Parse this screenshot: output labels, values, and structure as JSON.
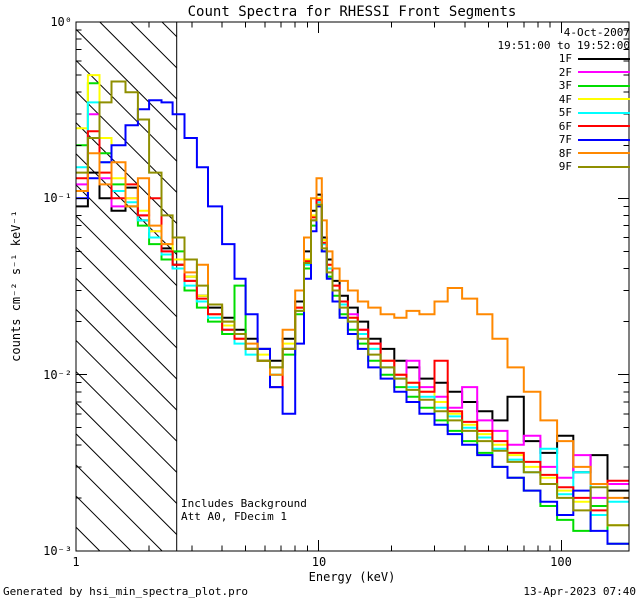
{
  "chart_data": {
    "type": "line",
    "mode": "histogram-steps",
    "title": "Count Spectra for RHESSI Front Segments",
    "xlabel": "Energy (keV)",
    "ylabel": "counts cm⁻² s⁻¹ keV⁻¹",
    "x_scale": "log",
    "y_scale": "log",
    "xlim": [
      1,
      190
    ],
    "ylim": [
      0.001,
      1
    ],
    "x_tick_labels": [
      "1",
      "10",
      "100"
    ],
    "y_tick_labels": [
      "10⁰",
      "10⁻¹",
      "10⁻²",
      "10⁻³"
    ],
    "legend_position": "top-right-inside",
    "hatch_xmax_keV": 2.6,
    "energy_bin_edges_keV": [
      1.0,
      1.12,
      1.25,
      1.4,
      1.6,
      1.8,
      2.0,
      2.25,
      2.5,
      2.8,
      3.15,
      3.5,
      4.0,
      4.5,
      5.0,
      5.6,
      6.3,
      7.1,
      8.0,
      8.7,
      9.3,
      9.8,
      10.3,
      10.8,
      11.4,
      12.2,
      13.2,
      14.5,
      16.0,
      18.0,
      20.5,
      23.0,
      26.0,
      30.0,
      34.0,
      39.0,
      45.0,
      52.0,
      60.0,
      70.0,
      82.0,
      96.0,
      112.0,
      132.0,
      155.0,
      190.0
    ],
    "series": [
      {
        "name": "1F",
        "color": "#000000",
        "values": [
          0.09,
          0.14,
          0.1,
          0.085,
          0.115,
          0.075,
          0.06,
          0.052,
          0.042,
          0.036,
          0.028,
          0.024,
          0.021,
          0.018,
          0.016,
          0.014,
          0.012,
          0.016,
          0.026,
          0.05,
          0.085,
          0.105,
          0.06,
          0.045,
          0.034,
          0.028,
          0.024,
          0.02,
          0.016,
          0.014,
          0.012,
          0.011,
          0.0095,
          0.009,
          0.008,
          0.007,
          0.0062,
          0.0055,
          0.0075,
          0.0042,
          0.0036,
          0.0045,
          0.0028,
          0.0035,
          0.0022
        ]
      },
      {
        "name": "2F",
        "color": "#ff00ff",
        "values": [
          0.12,
          0.3,
          0.13,
          0.09,
          0.1,
          0.08,
          0.065,
          0.05,
          0.04,
          0.034,
          0.026,
          0.022,
          0.018,
          0.016,
          0.014,
          0.012,
          0.011,
          0.014,
          0.024,
          0.045,
          0.075,
          0.095,
          0.055,
          0.04,
          0.032,
          0.026,
          0.022,
          0.018,
          0.015,
          0.012,
          0.01,
          0.012,
          0.0085,
          0.0075,
          0.0065,
          0.0085,
          0.0055,
          0.0048,
          0.004,
          0.0045,
          0.003,
          0.0026,
          0.0035,
          0.002,
          0.0024
        ]
      },
      {
        "name": "3F",
        "color": "#00dd00",
        "values": [
          0.2,
          0.45,
          0.18,
          0.12,
          0.09,
          0.07,
          0.055,
          0.045,
          0.05,
          0.03,
          0.024,
          0.02,
          0.017,
          0.032,
          0.014,
          0.012,
          0.01,
          0.013,
          0.022,
          0.04,
          0.07,
          0.09,
          0.05,
          0.036,
          0.028,
          0.022,
          0.018,
          0.015,
          0.012,
          0.01,
          0.0085,
          0.0075,
          0.0065,
          0.0055,
          0.0048,
          0.0042,
          0.0036,
          0.003,
          0.0026,
          0.0022,
          0.0018,
          0.0015,
          0.0013,
          0.0018,
          0.0011
        ]
      },
      {
        "name": "4F",
        "color": "#ffff00",
        "values": [
          0.25,
          0.5,
          0.22,
          0.13,
          0.1,
          0.085,
          0.065,
          0.055,
          0.045,
          0.036,
          0.028,
          0.022,
          0.019,
          0.016,
          0.014,
          0.013,
          0.011,
          0.015,
          0.024,
          0.045,
          0.08,
          0.1,
          0.058,
          0.042,
          0.032,
          0.026,
          0.021,
          0.017,
          0.014,
          0.012,
          0.01,
          0.009,
          0.008,
          0.007,
          0.006,
          0.0052,
          0.0046,
          0.004,
          0.0035,
          0.003,
          0.0026,
          0.0022,
          0.0019,
          0.0016,
          0.0014
        ]
      },
      {
        "name": "5F",
        "color": "#00ffff",
        "values": [
          0.15,
          0.35,
          0.16,
          0.11,
          0.095,
          0.075,
          0.06,
          0.048,
          0.04,
          0.032,
          0.026,
          0.021,
          0.018,
          0.015,
          0.013,
          0.012,
          0.01,
          0.014,
          0.023,
          0.042,
          0.075,
          0.095,
          0.055,
          0.04,
          0.03,
          0.025,
          0.02,
          0.017,
          0.014,
          0.011,
          0.0095,
          0.0085,
          0.0075,
          0.0065,
          0.0058,
          0.005,
          0.0044,
          0.0038,
          0.0033,
          0.0028,
          0.0038,
          0.0021,
          0.0028,
          0.0016,
          0.0019
        ]
      },
      {
        "name": "6F",
        "color": "#ff0000",
        "values": [
          0.13,
          0.24,
          0.14,
          0.1,
          0.12,
          0.08,
          0.1,
          0.05,
          0.042,
          0.034,
          0.027,
          0.022,
          0.018,
          0.016,
          0.014,
          0.012,
          0.0085,
          0.014,
          0.024,
          0.044,
          0.078,
          0.098,
          0.056,
          0.042,
          0.032,
          0.026,
          0.021,
          0.018,
          0.015,
          0.012,
          0.01,
          0.009,
          0.008,
          0.012,
          0.0062,
          0.0054,
          0.0048,
          0.0042,
          0.0036,
          0.0032,
          0.0027,
          0.0023,
          0.002,
          0.0017,
          0.0025
        ]
      },
      {
        "name": "7F",
        "color": "#0000ff",
        "values": [
          0.1,
          0.13,
          0.16,
          0.2,
          0.26,
          0.32,
          0.36,
          0.35,
          0.3,
          0.22,
          0.15,
          0.09,
          0.055,
          0.035,
          0.022,
          0.014,
          0.0085,
          0.006,
          0.015,
          0.035,
          0.065,
          0.09,
          0.05,
          0.035,
          0.026,
          0.021,
          0.017,
          0.014,
          0.011,
          0.0095,
          0.008,
          0.007,
          0.006,
          0.0052,
          0.0046,
          0.004,
          0.0035,
          0.003,
          0.0026,
          0.0022,
          0.0019,
          0.0016,
          0.0022,
          0.0013,
          0.0011
        ]
      },
      {
        "name": "8F",
        "color": "#ff8800",
        "values": [
          0.11,
          0.18,
          0.12,
          0.16,
          0.09,
          0.13,
          0.07,
          0.055,
          0.06,
          0.038,
          0.042,
          0.025,
          0.02,
          0.017,
          0.015,
          0.012,
          0.01,
          0.018,
          0.03,
          0.06,
          0.1,
          0.13,
          0.075,
          0.05,
          0.04,
          0.034,
          0.03,
          0.026,
          0.024,
          0.022,
          0.021,
          0.023,
          0.022,
          0.026,
          0.031,
          0.027,
          0.022,
          0.016,
          0.011,
          0.008,
          0.0055,
          0.0042,
          0.003,
          0.0024,
          0.002
        ]
      },
      {
        "name": "9F",
        "color": "#8f8f00",
        "values": [
          0.14,
          0.22,
          0.35,
          0.46,
          0.4,
          0.28,
          0.14,
          0.08,
          0.06,
          0.045,
          0.032,
          0.025,
          0.02,
          0.017,
          0.014,
          0.012,
          0.011,
          0.014,
          0.023,
          0.043,
          0.075,
          0.092,
          0.052,
          0.038,
          0.03,
          0.024,
          0.02,
          0.016,
          0.013,
          0.011,
          0.0095,
          0.0082,
          0.0072,
          0.0062,
          0.0055,
          0.0048,
          0.0042,
          0.0037,
          0.0032,
          0.0028,
          0.0024,
          0.002,
          0.0017,
          0.0023,
          0.0014
        ]
      }
    ]
  },
  "annotations": {
    "date": "4-Oct-2007",
    "time_range": "19:51:00 to 19:52:00",
    "note_line1": "Includes Background",
    "note_line2": "Att A0, FDecim 1"
  },
  "footer": {
    "left": "Generated by hsi_min_spectra_plot.pro",
    "right": "13-Apr-2023 07:40"
  }
}
